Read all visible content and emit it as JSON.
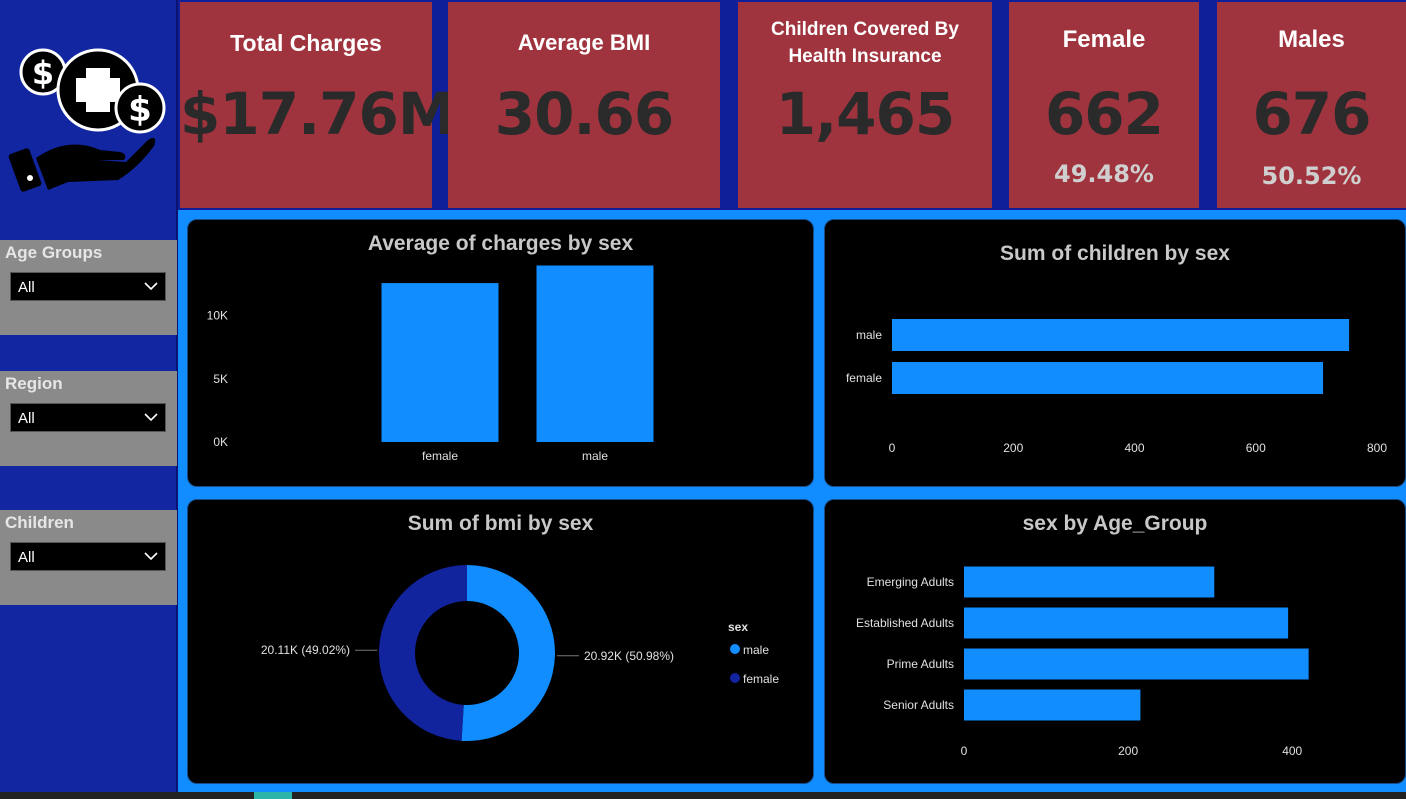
{
  "sidebar": {
    "logo_icon": "insurance-money-hand-icon",
    "slicers": [
      {
        "title": "Age Groups",
        "value": "All"
      },
      {
        "title": "Region",
        "value": "All"
      },
      {
        "title": "Children",
        "value": "All"
      }
    ]
  },
  "kpis": {
    "total_charges": {
      "title": "Total Charges",
      "value": "$17.76M"
    },
    "average_bmi": {
      "title": "Average BMI",
      "value": "30.66"
    },
    "children": {
      "title_line1": "Children Covered By",
      "title_line2": "Health Insurance",
      "value": "1,465"
    },
    "female": {
      "title": "Female",
      "value": "662",
      "pct": "49.48%"
    },
    "males": {
      "title": "Males",
      "value": "676",
      "pct": "50.52%"
    }
  },
  "colors": {
    "accent": "#118dff",
    "dark_blue": "#1126a0",
    "kpi_red": "#a0343e"
  },
  "chart_data": [
    {
      "type": "bar",
      "title": "Average of charges by sex",
      "categories": [
        "female",
        "male"
      ],
      "values": [
        12570,
        13960
      ],
      "yticks": [
        "0K",
        "5K",
        "10K"
      ],
      "ylim": [
        0,
        14000
      ]
    },
    {
      "type": "bar",
      "orientation": "horizontal",
      "title": "Sum of children by sex",
      "categories": [
        "male",
        "female"
      ],
      "values": [
        754,
        711
      ],
      "xticks": [
        "0",
        "200",
        "400",
        "600",
        "800"
      ],
      "xlim": [
        0,
        800
      ]
    },
    {
      "type": "pie",
      "style": "donut",
      "title": "Sum of bmi by sex",
      "legend_title": "sex",
      "legend_position": "right",
      "slices": [
        {
          "name": "male",
          "value": 20.92,
          "label": "20.92K (50.98%)",
          "color": "#118dff"
        },
        {
          "name": "female",
          "value": 20.11,
          "label": "20.11K (49.02%)",
          "color": "#12239e"
        }
      ]
    },
    {
      "type": "bar",
      "orientation": "horizontal",
      "title": "sex by Age_Group",
      "categories": [
        "Emerging Adults",
        "Established Adults",
        "Prime Adults",
        "Senior Adults"
      ],
      "values": [
        305,
        395,
        420,
        215
      ],
      "xticks": [
        "0",
        "200",
        "400"
      ],
      "xlim": [
        0,
        535
      ]
    }
  ]
}
